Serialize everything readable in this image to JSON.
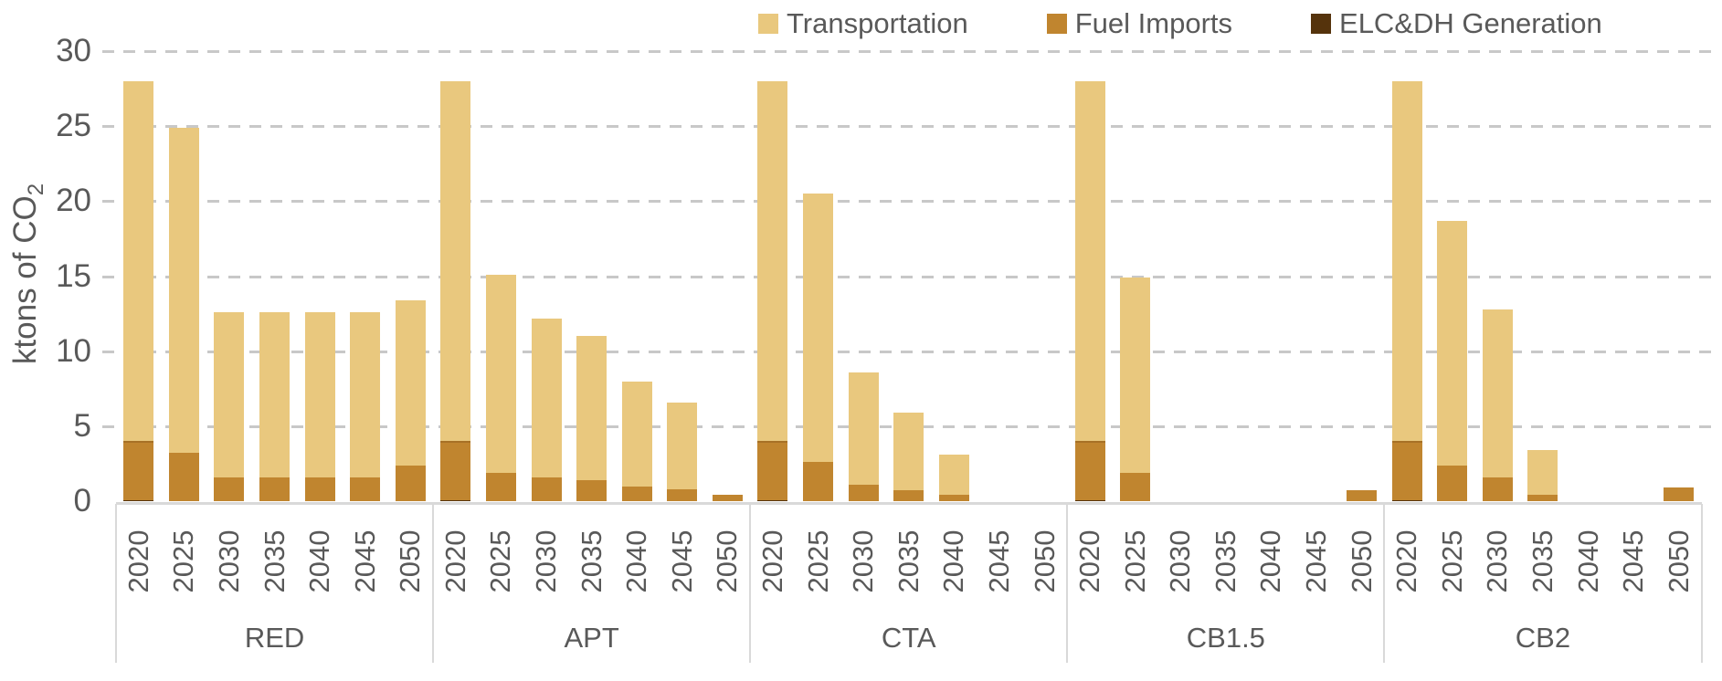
{
  "chart_data": {
    "type": "bar",
    "stacked": true,
    "title": "",
    "ylabel": "ktons of CO2",
    "ylabel_main": "ktons of CO",
    "ylabel_sub": "2",
    "ylim": [
      0,
      30
    ],
    "yticks": [
      0,
      5,
      10,
      15,
      20,
      25,
      30
    ],
    "grid": "horizontal-dashed",
    "legend_position": "top",
    "groups": [
      "RED",
      "APT",
      "CTA",
      "CB1.5",
      "CB2"
    ],
    "years": [
      "2020",
      "2025",
      "2030",
      "2035",
      "2040",
      "2045",
      "2050"
    ],
    "legend_order": [
      "Transportation",
      "Fuel Imports",
      "ELC&DH Generation"
    ],
    "series": [
      {
        "name": "ELC&DH Generation",
        "color": "#55330c",
        "values": [
          [
            0.2,
            0,
            0,
            0,
            0,
            0,
            0
          ],
          [
            0.2,
            0,
            0,
            0,
            0,
            0,
            0
          ],
          [
            0.2,
            0,
            0,
            0,
            0,
            0,
            0
          ],
          [
            0.2,
            0,
            0,
            0,
            0,
            0,
            0
          ],
          [
            0.2,
            0,
            0,
            0,
            0,
            0,
            0
          ]
        ]
      },
      {
        "name": "Fuel Imports",
        "color": "#c0852f",
        "values": [
          [
            3.8,
            3.2,
            1.6,
            1.6,
            1.6,
            1.6,
            2.4
          ],
          [
            3.8,
            1.9,
            1.6,
            1.4,
            1.0,
            0.8,
            0.4
          ],
          [
            3.8,
            2.6,
            1.1,
            0.7,
            0.4,
            0,
            0
          ],
          [
            3.8,
            1.9,
            0,
            0,
            0,
            0,
            0.7
          ],
          [
            3.8,
            2.4,
            1.6,
            0.4,
            0,
            0,
            0.9
          ]
        ]
      },
      {
        "name": "Transportation",
        "color": "#e9c87e",
        "values": [
          [
            24.0,
            21.7,
            11.0,
            11.0,
            11.0,
            11.0,
            11.0
          ],
          [
            24.0,
            13.2,
            10.6,
            9.6,
            7.0,
            5.8,
            0
          ],
          [
            24.0,
            17.9,
            7.5,
            5.2,
            2.7,
            0,
            0
          ],
          [
            24.0,
            13.0,
            0,
            0,
            0,
            0,
            0
          ],
          [
            24.0,
            16.3,
            11.2,
            3.0,
            0,
            0,
            0
          ]
        ]
      }
    ]
  },
  "colors": {
    "grid": "#c8c8c8",
    "axis_line": "#d9d9d9",
    "text": "#595959",
    "background": "#ffffff"
  }
}
